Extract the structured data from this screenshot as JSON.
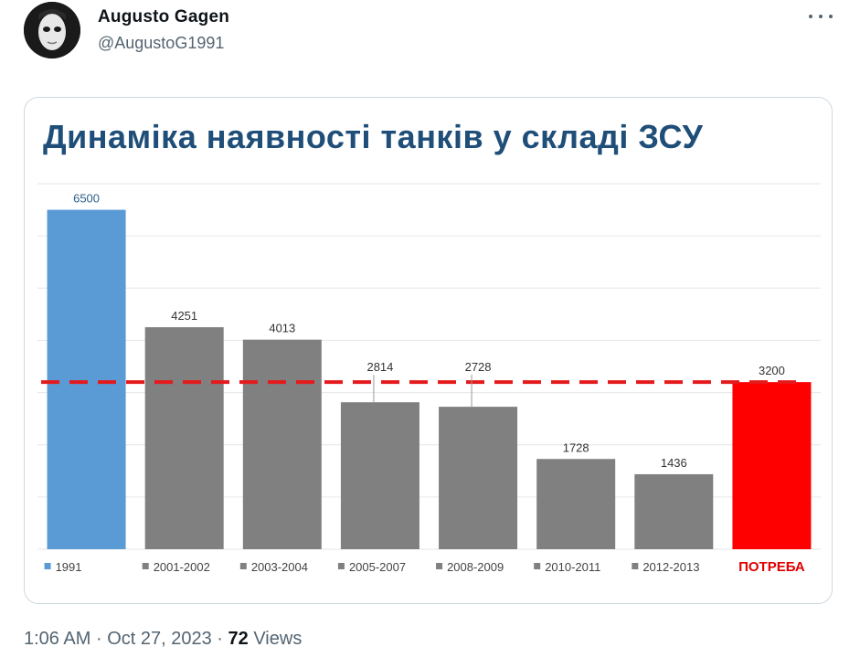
{
  "tweet": {
    "author_name": "Augusto Gagen",
    "author_handle": "@AugustoG1991",
    "time": "1:06 AM",
    "date": "Oct 27, 2023",
    "separator": "·",
    "views_count": "72",
    "views_label": "Views"
  },
  "chart_data": {
    "type": "bar",
    "title": "Динаміка наявності танків у складі ЗСУ",
    "categories": [
      "1991",
      "2001-2002",
      "2003-2004",
      "2005-2007",
      "2008-2009",
      "2010-2011",
      "2012-2013",
      "ПОТРЕБА"
    ],
    "values": [
      6500,
      4251,
      4013,
      2814,
      2728,
      1728,
      1436,
      3200
    ],
    "colors": [
      "#5b9bd5",
      "#808080",
      "#808080",
      "#808080",
      "#808080",
      "#808080",
      "#808080",
      "#ff0000"
    ],
    "reference_line": {
      "value": 3200,
      "style": "dashed",
      "color": "#e41a1c"
    },
    "ylim": [
      0,
      7000
    ],
    "grid": true,
    "legend": "bottom"
  }
}
